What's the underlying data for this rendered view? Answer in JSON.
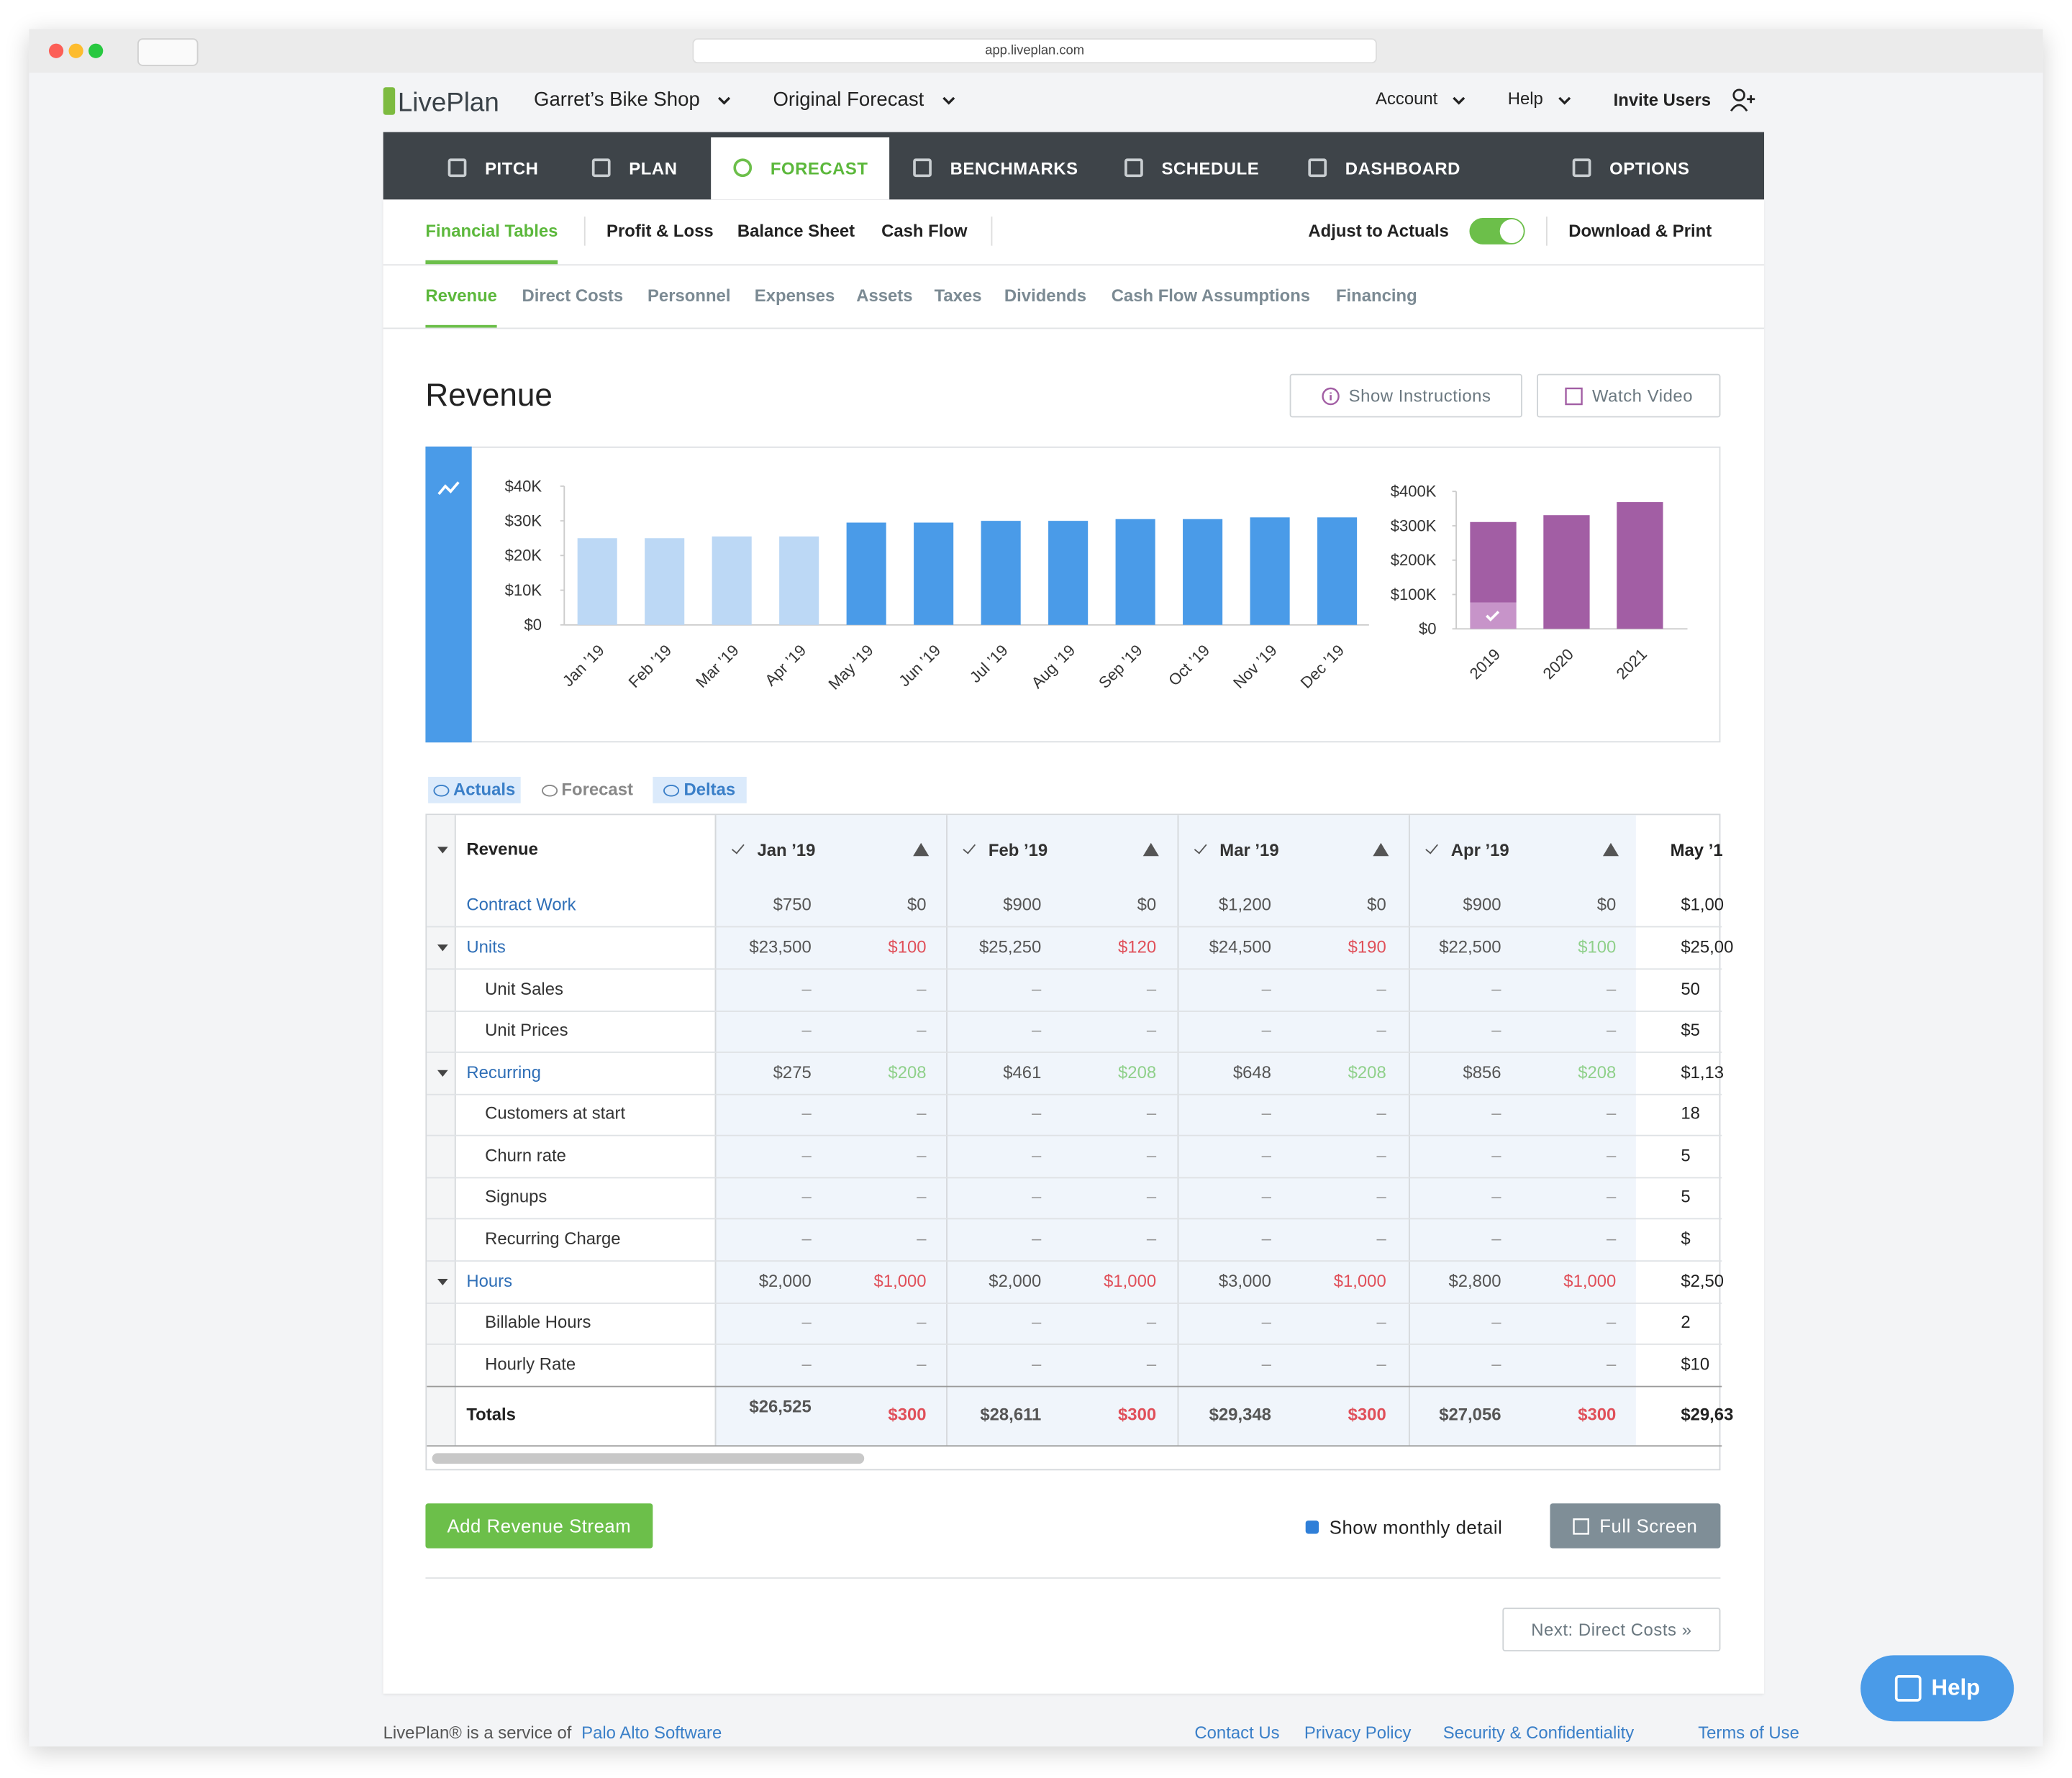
{
  "browser": {
    "url": "app.liveplan.com"
  },
  "header": {
    "logo": "LivePlan",
    "company": "Garret’s Bike Shop",
    "forecast": "Original Forecast",
    "account": "Account",
    "help": "Help",
    "invite": "Invite Users"
  },
  "nav": [
    "PITCH",
    "PLAN",
    "FORECAST",
    "BENCHMARKS",
    "SCHEDULE",
    "DASHBOARD",
    "OPTIONS"
  ],
  "subnav": {
    "tabs": [
      "Financial Tables",
      "Profit & Loss",
      "Balance Sheet",
      "Cash Flow"
    ],
    "adjust": "Adjust to Actuals",
    "download": "Download & Print"
  },
  "sections": [
    "Revenue",
    "Direct Costs",
    "Personnel",
    "Expenses",
    "Assets",
    "Taxes",
    "Dividends",
    "Cash Flow Assumptions",
    "Financing"
  ],
  "page": {
    "title": "Revenue",
    "show_instructions": "Show Instructions",
    "watch_video": "Watch Video"
  },
  "chart_data": [
    {
      "type": "bar",
      "categories": [
        "Jan ’19",
        "Feb ’19",
        "Mar ’19",
        "Apr ’19",
        "May ’19",
        "Jun ’19",
        "Jul ’19",
        "Aug ’19",
        "Sep ’19",
        "Oct ’19",
        "Nov ’19",
        "Dec ’19"
      ],
      "values": [
        25000,
        25000,
        25500,
        25500,
        29500,
        29500,
        30000,
        30000,
        30500,
        30500,
        31000,
        31000
      ],
      "colors": [
        "#bcd8f5",
        "#bcd8f5",
        "#bcd8f5",
        "#bcd8f5",
        "#4a9be8",
        "#4a9be8",
        "#4a9be8",
        "#4a9be8",
        "#4a9be8",
        "#4a9be8",
        "#4a9be8",
        "#4a9be8"
      ],
      "ylim": [
        0,
        40000
      ],
      "yticks": [
        {
          "value": 0,
          "label": "$0"
        },
        {
          "value": 10000,
          "label": "$10K"
        },
        {
          "value": 20000,
          "label": "$20K"
        },
        {
          "value": 30000,
          "label": "$30K"
        },
        {
          "value": 40000,
          "label": "$40K"
        }
      ]
    },
    {
      "type": "stacked_bar",
      "categories": [
        "2019",
        "2020",
        "2021"
      ],
      "series": [
        {
          "color": "#c794c9",
          "values": [
            77000,
            null,
            null
          ]
        },
        {
          "color": "#a25ea4",
          "values": [
            234000,
            331000,
            369000
          ]
        }
      ],
      "ylim": [
        0,
        400000
      ],
      "yticks": [
        {
          "value": 0,
          "label": "$0"
        },
        {
          "value": 100000,
          "label": "$100K"
        },
        {
          "value": 200000,
          "label": "$200K"
        },
        {
          "value": 300000,
          "label": "$300K"
        },
        {
          "value": 400000,
          "label": "$400K"
        }
      ]
    }
  ],
  "view_toggles": [
    "Actuals",
    "Forecast",
    "Deltas"
  ],
  "table": {
    "title": "Revenue",
    "months": [
      "Jan ’19",
      "Feb ’19",
      "Mar ’19",
      "Apr ’19",
      "May ’1"
    ],
    "rows": [
      {
        "label": "Contract Work",
        "kind": "link",
        "cells": [
          "$750",
          "$0",
          "$900",
          "$0",
          "$1,200",
          "$0",
          "$900",
          "$0",
          "$1,00"
        ]
      },
      {
        "label": "Units",
        "kind": "group",
        "cells": [
          "$23,500",
          "$100",
          "$25,250",
          "$120",
          "$24,500",
          "$190",
          "$22,500",
          "$100",
          "$25,00"
        ],
        "delta_colors": [
          "#e0505a",
          "#e0505a",
          "#e0505a",
          "#8fd08a"
        ]
      },
      {
        "label": "Unit Sales",
        "kind": "child",
        "cells": [
          "–",
          "–",
          "–",
          "–",
          "–",
          "–",
          "–",
          "–",
          "50"
        ]
      },
      {
        "label": "Unit Prices",
        "kind": "child",
        "cells": [
          "–",
          "–",
          "–",
          "–",
          "–",
          "–",
          "–",
          "–",
          "$5"
        ]
      },
      {
        "label": "Recurring",
        "kind": "group",
        "cells": [
          "$275",
          "$208",
          "$461",
          "$208",
          "$648",
          "$208",
          "$856",
          "$208",
          "$1,13"
        ],
        "delta_colors": [
          "#8fd08a",
          "#8fd08a",
          "#8fd08a",
          "#8fd08a"
        ]
      },
      {
        "label": "Customers at start",
        "kind": "child",
        "cells": [
          "–",
          "–",
          "–",
          "–",
          "–",
          "–",
          "–",
          "–",
          "18"
        ]
      },
      {
        "label": "Churn rate",
        "kind": "child",
        "cells": [
          "–",
          "–",
          "–",
          "–",
          "–",
          "–",
          "–",
          "–",
          "5"
        ]
      },
      {
        "label": "Signups",
        "kind": "child",
        "cells": [
          "–",
          "–",
          "–",
          "–",
          "–",
          "–",
          "–",
          "–",
          "5"
        ]
      },
      {
        "label": "Recurring Charge",
        "kind": "child",
        "cells": [
          "–",
          "–",
          "–",
          "–",
          "–",
          "–",
          "–",
          "–",
          "$"
        ]
      },
      {
        "label": "Hours",
        "kind": "group",
        "cells": [
          "$2,000",
          "$1,000",
          "$2,000",
          "$1,000",
          "$3,000",
          "$1,000",
          "$2,800",
          "$1,000",
          "$2,50"
        ],
        "delta_colors": [
          "#e0505a",
          "#e0505a",
          "#e0505a",
          "#e0505a"
        ]
      },
      {
        "label": "Billable Hours",
        "kind": "child",
        "cells": [
          "–",
          "–",
          "–",
          "–",
          "–",
          "–",
          "–",
          "–",
          "2"
        ]
      },
      {
        "label": "Hourly Rate",
        "kind": "child",
        "cells": [
          "–",
          "–",
          "–",
          "–",
          "–",
          "–",
          "–",
          "–",
          "$10"
        ]
      }
    ],
    "totals": {
      "label": "Totals",
      "cells": [
        "$26,525",
        "$300",
        "$28,611",
        "$300",
        "$29,348",
        "$300",
        "$27,056",
        "$300",
        "$29,63"
      ],
      "delta_colors": [
        "#e0505a",
        "#e0505a",
        "#e0505a",
        "#e0505a"
      ]
    }
  },
  "footer_actions": {
    "add": "Add Revenue Stream",
    "monthly": "Show monthly detail",
    "full_screen": "Full Screen",
    "next": "Next: Direct Costs »"
  },
  "footer": {
    "service": "LivePlan® is a service of",
    "company": "Palo Alto Software",
    "links": [
      "Contact Us",
      "Privacy Policy",
      "Security & Confidentiality",
      "Terms of Use"
    ]
  },
  "help_button": "Help"
}
